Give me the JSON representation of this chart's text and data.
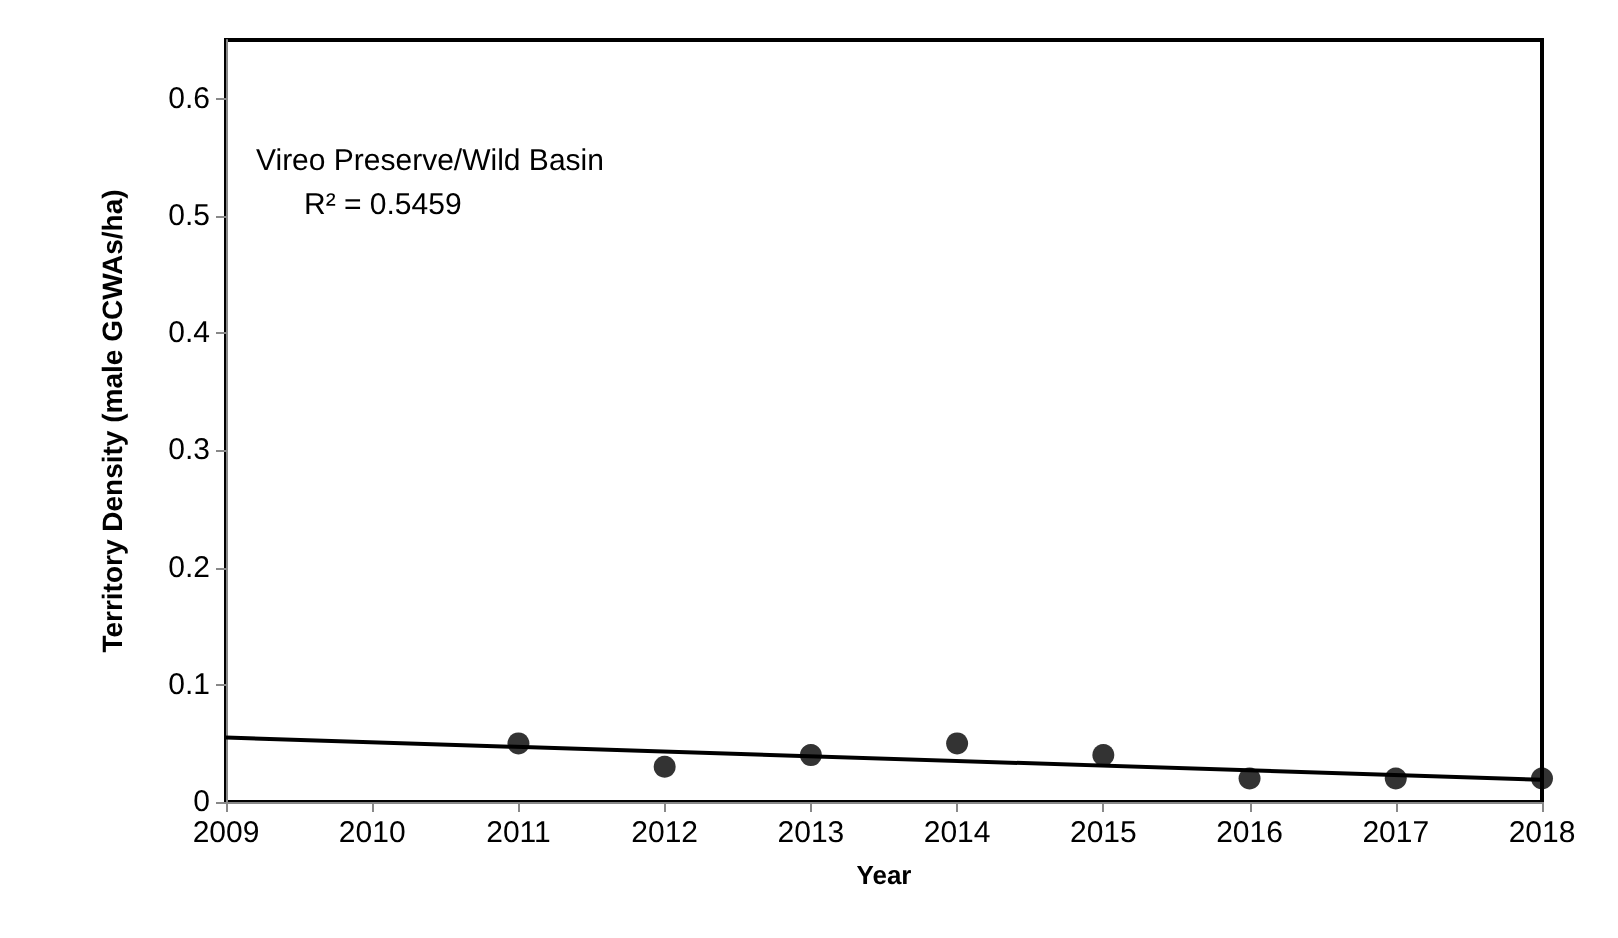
{
  "chart_data": {
    "type": "scatter",
    "xlabel": "Year",
    "ylabel": "Territory Density (male GCWAs/ha)",
    "annotations": [
      "Vireo Preserve/Wild Basin",
      "R² = 0.5459"
    ],
    "marker": "circle",
    "grid": false,
    "xlim": [
      2009,
      2018
    ],
    "xticks": [
      2009,
      2010,
      2011,
      2012,
      2013,
      2014,
      2015,
      2016,
      2017,
      2018
    ],
    "ylim": [
      0,
      0.65
    ],
    "yticks": [
      0,
      0.1,
      0.2,
      0.3,
      0.4,
      0.5,
      0.6
    ],
    "series": [
      {
        "color": "#000000",
        "x": [
          2011,
          2012,
          2013,
          2014,
          2015,
          2016,
          2017,
          2018
        ],
        "values": [
          0.05,
          0.03,
          0.04,
          0.05,
          0.04,
          0.02,
          0.02,
          0.02
        ]
      },
      {
        "type": "line",
        "color": "#000000",
        "marker": "none",
        "x": [
          2009,
          2018
        ],
        "values": [
          0.055,
          0.019
        ]
      }
    ]
  }
}
